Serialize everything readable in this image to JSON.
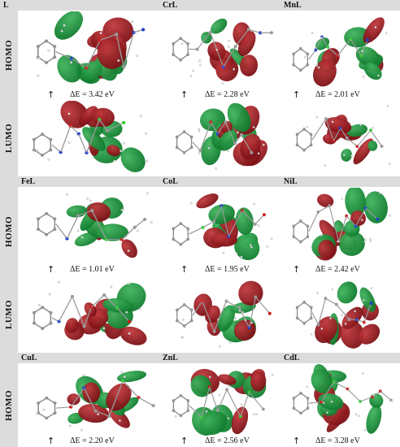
{
  "bands": [
    {
      "labels": [
        "L",
        "CrL",
        "MnL"
      ]
    },
    {
      "labels": [
        "FeL",
        "CoL",
        "NiL"
      ]
    },
    {
      "labels": [
        "CuL",
        "ZnL",
        "CdL"
      ]
    }
  ],
  "row_labels": [
    "HOMO",
    "LUMO",
    "HOMO",
    "LUMO",
    "HOMO"
  ],
  "energy_gaps": [
    [
      "ΔE = 3.42 eV",
      "ΔE = 2.28 eV",
      "ΔE = 2.01 eV"
    ],
    [
      "ΔE = 1.01 eV",
      "ΔE = 1.95 eV",
      "ΔE = 2.42 eV"
    ],
    [
      "ΔE = 2.20 eV",
      "ΔE = 2.56 eV",
      "ΔE = 3.28 eV"
    ]
  ],
  "arrow_symbol": "↑",
  "colors": {
    "lobe_red": "#7a0f14",
    "lobe_green": "#0e7a2c",
    "atom_grey": "#9a9a9a",
    "atom_blue": "#1f3fcc",
    "atom_red": "#d11a1a",
    "atom_green": "#2fd12f",
    "band": "#dcdcdc"
  }
}
